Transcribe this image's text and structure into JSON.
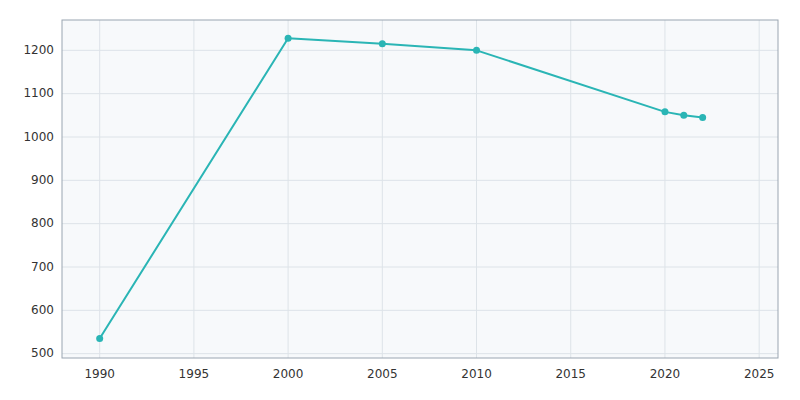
{
  "chart_data": {
    "type": "line",
    "x": [
      1990,
      2000,
      2005,
      2010,
      2020,
      2021,
      2022
    ],
    "values": [
      535,
      1228,
      1215,
      1200,
      1058,
      1050,
      1045
    ],
    "color": "#2ab5b5",
    "marker": "circle",
    "xlim": [
      1988,
      2026
    ],
    "ylim": [
      490,
      1270
    ],
    "xticks": [
      1990,
      1995,
      2000,
      2005,
      2010,
      2015,
      2020,
      2025
    ],
    "yticks": [
      500,
      600,
      700,
      800,
      900,
      1000,
      1100,
      1200
    ],
    "grid": true
  }
}
